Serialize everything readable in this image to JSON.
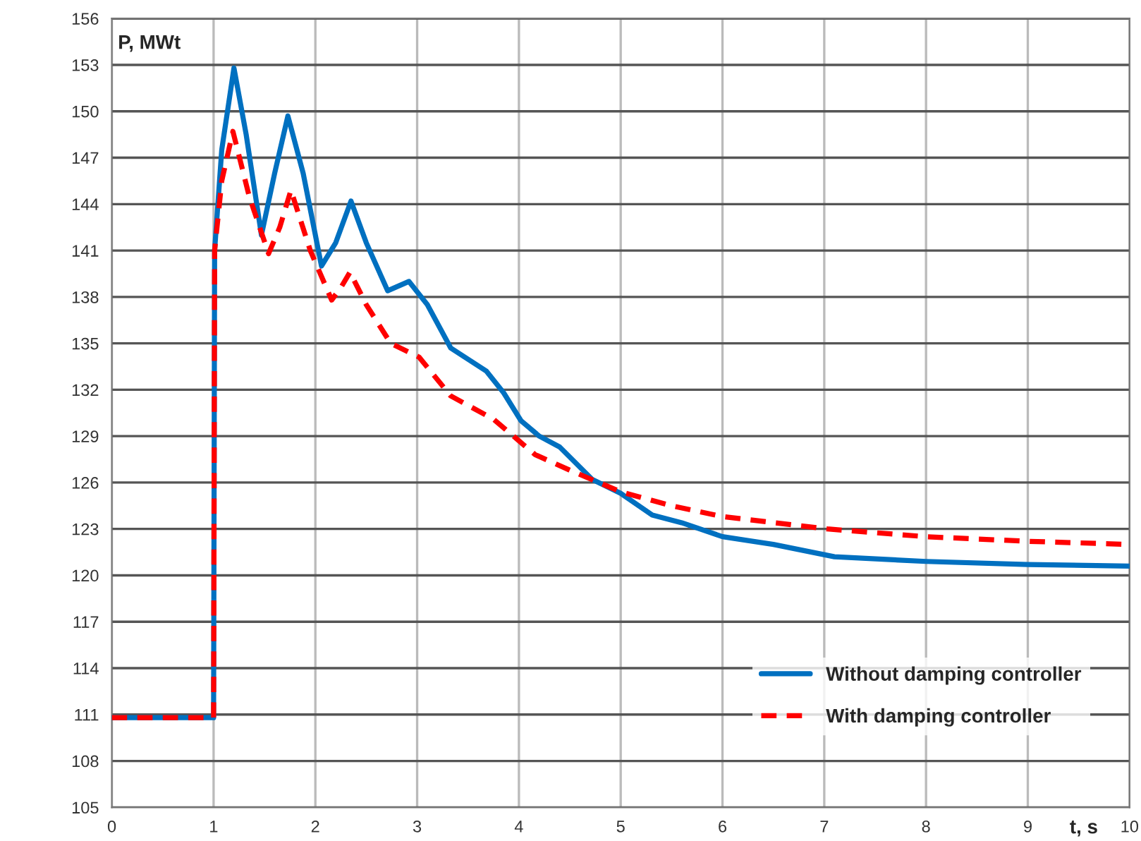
{
  "chart_data": {
    "type": "line",
    "xlabel": "t, s",
    "ylabel": "P, MWt",
    "xlim": [
      0,
      10
    ],
    "xticks": [
      0,
      1,
      2,
      3,
      4,
      5,
      6,
      7,
      8,
      9,
      10
    ],
    "ylim": [
      105,
      156
    ],
    "yticks": [
      105,
      108,
      111,
      114,
      117,
      120,
      123,
      126,
      129,
      132,
      135,
      138,
      141,
      144,
      147,
      150,
      153,
      156
    ],
    "grid": true,
    "legend": "bottom right",
    "series": [
      {
        "name": "Without damping controller",
        "color": "#0070c0",
        "line_style": "solid",
        "x": [
          0,
          1.0,
          1.01,
          1.08,
          1.2,
          1.32,
          1.47,
          1.6,
          1.73,
          1.88,
          2.06,
          2.2,
          2.35,
          2.5,
          2.71,
          2.92,
          3.1,
          3.33,
          3.68,
          3.85,
          4.02,
          4.2,
          4.4,
          4.72,
          5.0,
          5.31,
          5.6,
          6.0,
          6.5,
          7.1,
          8.0,
          9.0,
          10.0
        ],
        "values": [
          110.8,
          110.8,
          141.0,
          147.5,
          152.8,
          148.5,
          142.0,
          146.0,
          149.7,
          146.0,
          140.0,
          141.5,
          144.2,
          141.5,
          138.4,
          139.0,
          137.5,
          134.7,
          133.2,
          131.8,
          130.0,
          129.0,
          128.3,
          126.2,
          125.3,
          123.9,
          123.4,
          122.5,
          122.0,
          121.2,
          120.9,
          120.7,
          120.6
        ]
      },
      {
        "name": "With damping controller",
        "color": "#ff0000",
        "line_style": "dashed",
        "x": [
          0,
          1.0,
          1.01,
          1.08,
          1.19,
          1.35,
          1.54,
          1.65,
          1.76,
          1.95,
          2.16,
          2.25,
          2.34,
          2.5,
          2.74,
          3.02,
          3.33,
          3.75,
          4.16,
          4.5,
          5.0,
          5.5,
          6.0,
          7.03,
          8.0,
          9.0,
          10.0
        ],
        "values": [
          110.8,
          110.8,
          141.0,
          145.5,
          148.7,
          144.5,
          140.8,
          142.5,
          144.9,
          141.0,
          137.8,
          138.6,
          139.6,
          137.5,
          135.0,
          134.1,
          131.6,
          130.1,
          127.8,
          126.8,
          125.4,
          124.5,
          123.8,
          123.0,
          122.5,
          122.2,
          122.0
        ]
      }
    ]
  }
}
